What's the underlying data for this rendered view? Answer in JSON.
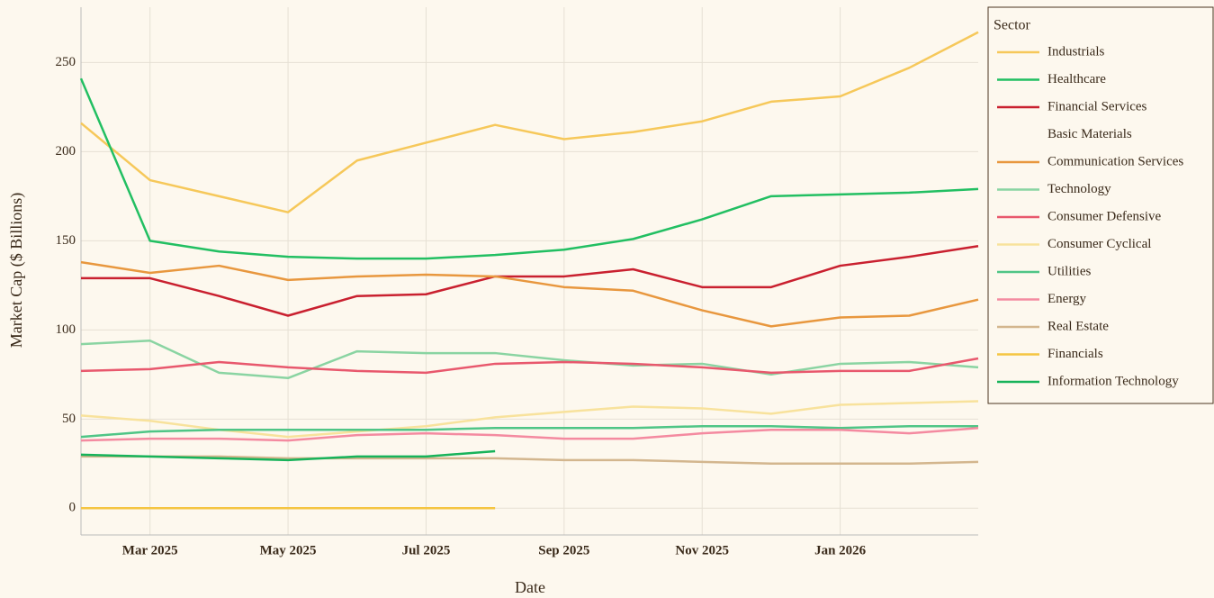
{
  "chart_data": {
    "type": "line",
    "xlabel": "Date",
    "ylabel": "Market Cap ($ Billions)",
    "legend_title": "Sector",
    "legend": "right",
    "grid": true,
    "x": [
      "2025-02",
      "2025-03",
      "2025-04",
      "2025-05",
      "2025-06",
      "2025-07",
      "2025-08",
      "2025-09",
      "2025-10",
      "2025-11",
      "2025-12",
      "2026-01",
      "2026-02",
      "2026-03"
    ],
    "xlim": [
      "2025-02",
      "2026-03"
    ],
    "xticks": [
      {
        "value": "2025-03",
        "label": "Mar 2025"
      },
      {
        "value": "2025-05",
        "label": "May 2025"
      },
      {
        "value": "2025-07",
        "label": "Jul 2025"
      },
      {
        "value": "2025-09",
        "label": "Sep 2025"
      },
      {
        "value": "2025-11",
        "label": "Nov 2025"
      },
      {
        "value": "2026-01",
        "label": "Jan 2026"
      }
    ],
    "ylim": [
      -15,
      281
    ],
    "yticks": [
      0,
      50,
      100,
      150,
      200,
      250
    ],
    "series": [
      {
        "name": "Industrials",
        "color": "#f6c85a",
        "values": [
          216,
          184,
          175,
          166,
          195,
          205,
          215,
          207,
          211,
          217,
          228,
          231,
          247,
          267
        ]
      },
      {
        "name": "Healthcare",
        "color": "#22bf62",
        "values": [
          241,
          150,
          144,
          141,
          140,
          140,
          142,
          145,
          151,
          162,
          175,
          176,
          177,
          179
        ]
      },
      {
        "name": "Financial Services",
        "color": "#c9202f",
        "values": [
          129,
          129,
          119,
          108,
          119,
          120,
          130,
          130,
          134,
          124,
          124,
          136,
          141,
          147
        ]
      },
      {
        "name": "Basic Materials",
        "color": "#fdf8ee",
        "values": [
          null,
          null,
          null,
          null,
          null,
          null,
          null,
          null,
          null,
          null,
          null,
          null,
          null,
          null
        ]
      },
      {
        "name": "Communication Services",
        "color": "#e8973e",
        "values": [
          138,
          132,
          136,
          128,
          130,
          131,
          130,
          124,
          122,
          111,
          102,
          107,
          108,
          117
        ]
      },
      {
        "name": "Technology",
        "color": "#8ad4a2",
        "values": [
          92,
          94,
          76,
          73,
          88,
          87,
          87,
          83,
          80,
          81,
          75,
          81,
          82,
          79
        ]
      },
      {
        "name": "Consumer Defensive",
        "color": "#e8586d",
        "values": [
          77,
          78,
          82,
          79,
          77,
          76,
          81,
          82,
          81,
          79,
          76,
          77,
          77,
          84
        ]
      },
      {
        "name": "Consumer Cyclical",
        "color": "#f8e29c",
        "values": [
          52,
          49,
          44,
          40,
          43,
          46,
          51,
          54,
          57,
          56,
          53,
          58,
          59,
          60
        ]
      },
      {
        "name": "Utilities",
        "color": "#4fc586",
        "values": [
          40,
          43,
          44,
          44,
          44,
          44,
          45,
          45,
          45,
          46,
          46,
          45,
          46,
          46
        ]
      },
      {
        "name": "Energy",
        "color": "#f48aa0",
        "values": [
          38,
          39,
          39,
          38,
          41,
          42,
          41,
          39,
          39,
          42,
          44,
          44,
          42,
          45
        ]
      },
      {
        "name": "Real Estate",
        "color": "#d3b68e",
        "values": [
          29,
          29,
          29,
          28,
          28,
          28,
          28,
          27,
          27,
          26,
          25,
          25,
          25,
          26
        ]
      },
      {
        "name": "Financials",
        "color": "#f5c542",
        "values": [
          0,
          0,
          0,
          0,
          0,
          0,
          0,
          null,
          null,
          null,
          null,
          null,
          null,
          null
        ]
      },
      {
        "name": "Information Technology",
        "color": "#17b35a",
        "values": [
          30,
          29,
          28,
          27,
          29,
          29,
          32,
          null,
          null,
          null,
          null,
          null,
          null,
          null
        ]
      }
    ]
  }
}
